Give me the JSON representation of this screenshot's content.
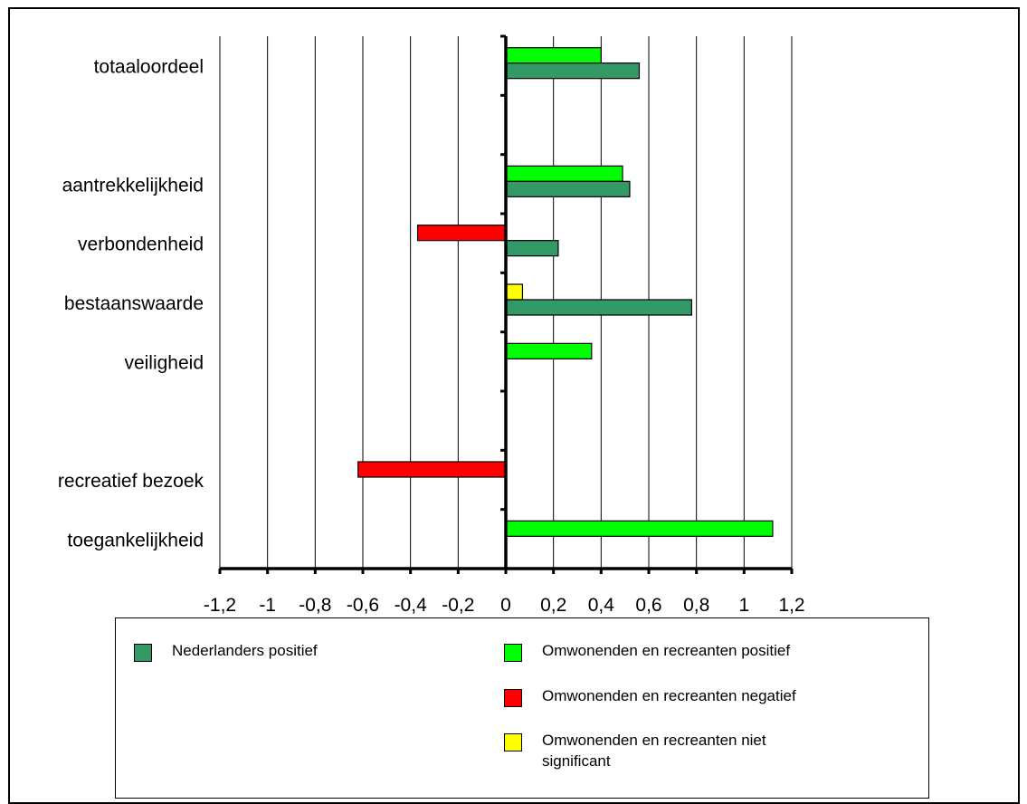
{
  "chart_data": {
    "type": "bar",
    "orientation": "horizontal",
    "xlim": [
      -1.2,
      1.2
    ],
    "x_ticks": [
      "-1,2",
      "-1",
      "-0,8",
      "-0,6",
      "-0,4",
      "-0,2",
      "0",
      "0,2",
      "0,4",
      "0,6",
      "0,8",
      "1",
      "1,2"
    ],
    "grid": true,
    "categories": [
      "totaaloordeel",
      "",
      "aantrekkelijkheid",
      "verbondenheid",
      "bestaanswaarde",
      "veiligheid",
      "",
      "recreatief bezoek",
      "toegankelijkheid"
    ],
    "series": [
      {
        "name": "Omwonenden en recreanten",
        "values": [
          0.4,
          null,
          0.49,
          -0.37,
          0.07,
          0.36,
          null,
          -0.62,
          1.12
        ],
        "status": [
          "positief",
          null,
          "positief",
          "negatief",
          "niet significant",
          "positief",
          null,
          "negatief",
          "positief"
        ]
      },
      {
        "name": "Nederlanders positief",
        "values": [
          0.56,
          null,
          0.52,
          0.22,
          0.78,
          null,
          null,
          null,
          null
        ]
      }
    ],
    "colors": {
      "nederlanders_positief": "#339966",
      "positief": "#00ff00",
      "negatief": "#ff0000",
      "niet_significant": "#ffff00"
    },
    "legend_placement": "bottom"
  },
  "legend": [
    {
      "label": "Nederlanders positief",
      "color": "#339966"
    },
    {
      "label": "Omwonenden en recreanten positief",
      "color": "#00ff00"
    },
    {
      "label": "Omwonenden en recreanten negatief",
      "color": "#ff0000"
    },
    {
      "label": "Omwonenden en recreanten niet significant",
      "color": "#ffff00"
    }
  ]
}
